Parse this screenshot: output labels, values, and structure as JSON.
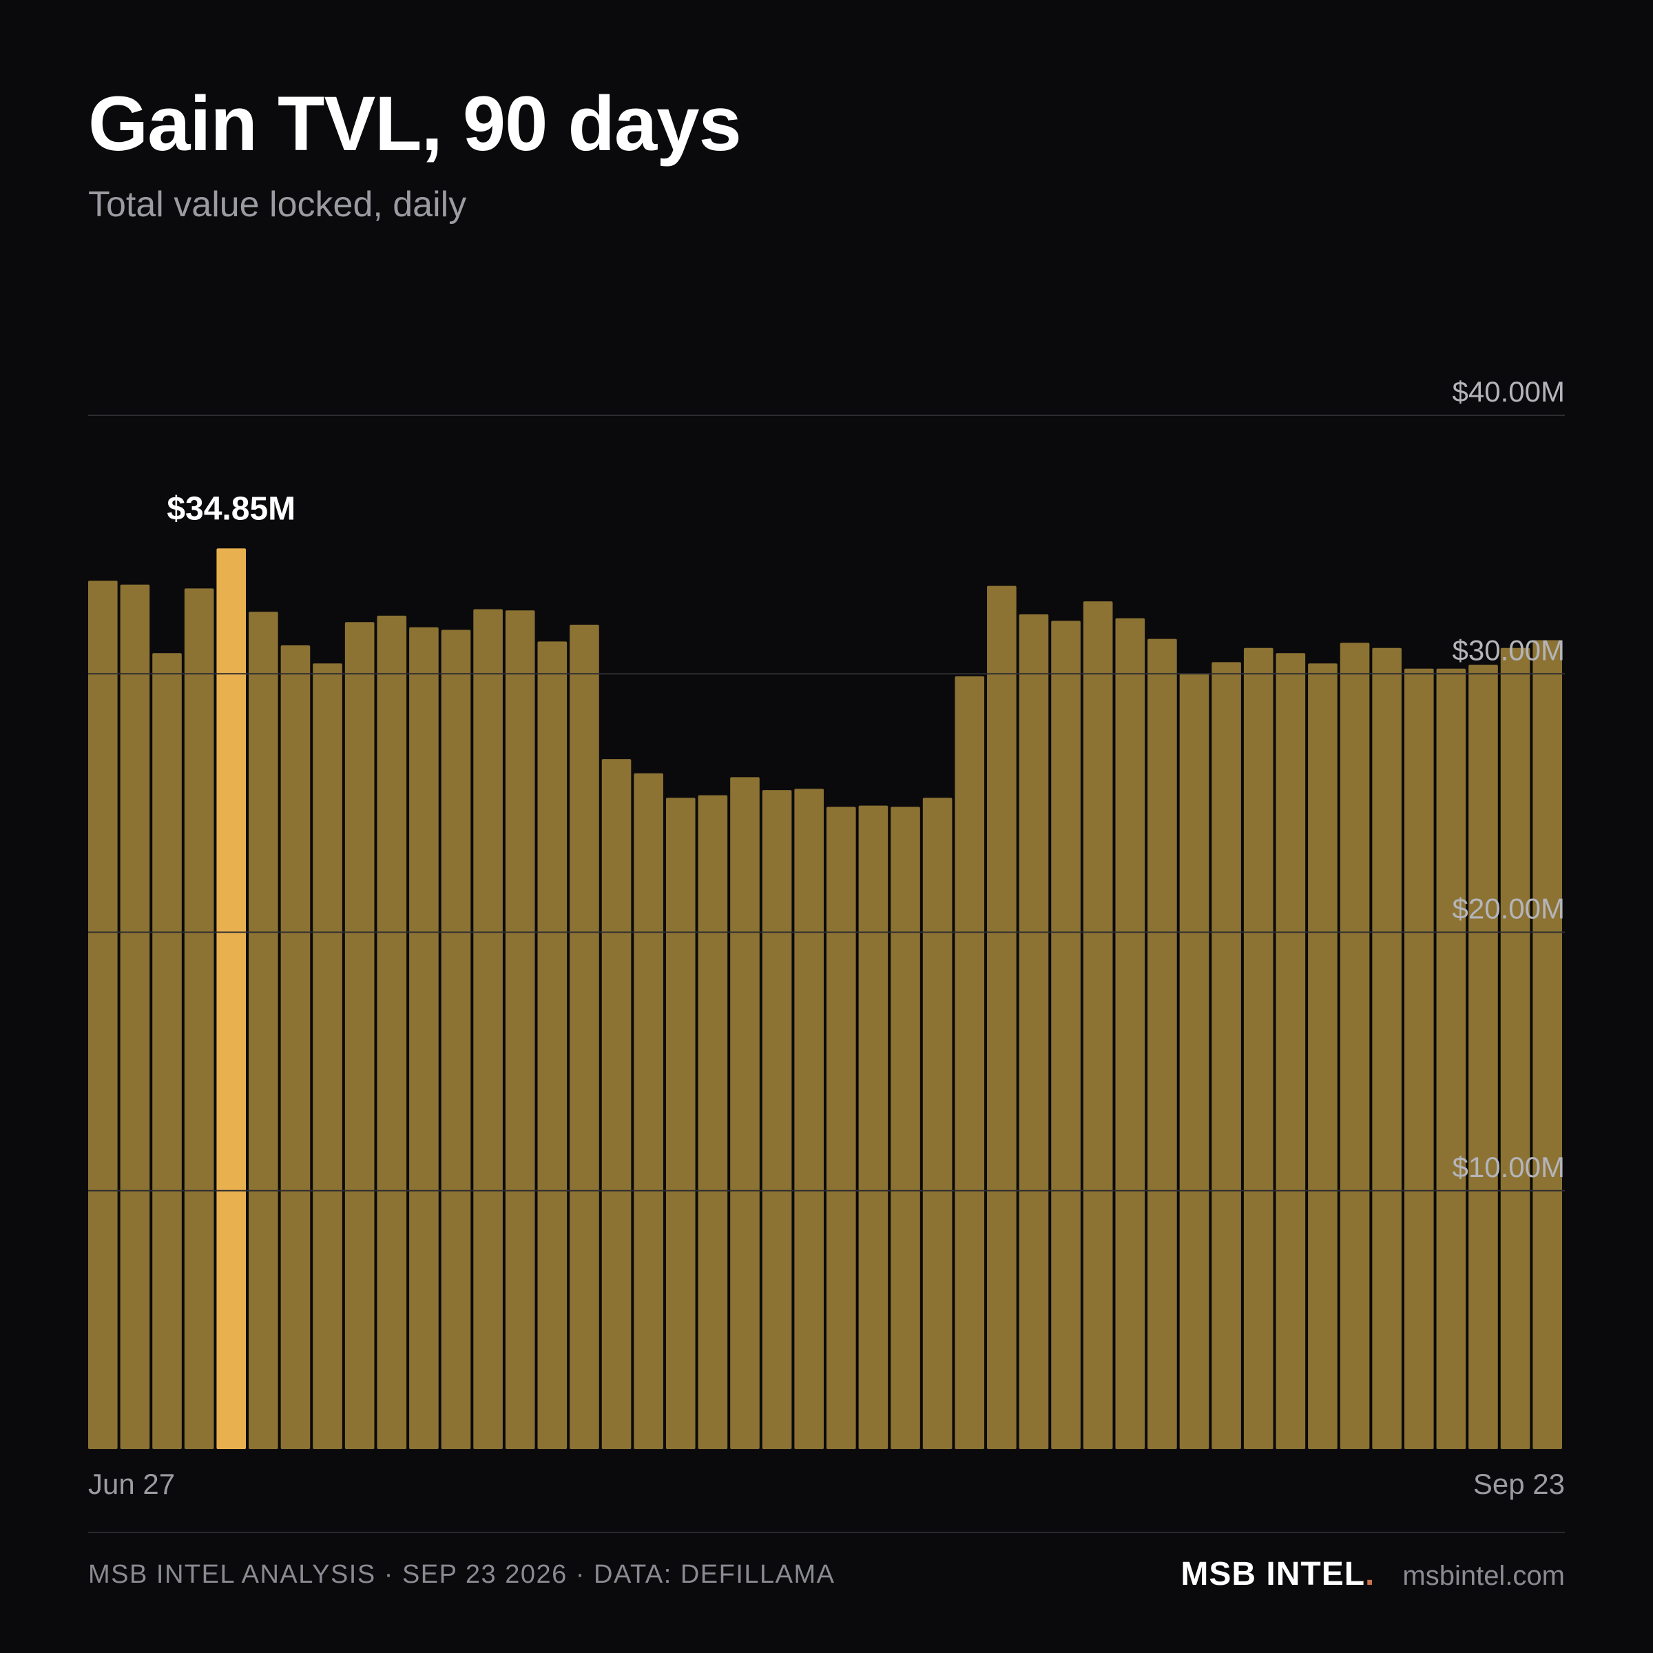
{
  "header": {
    "title": "Gain TVL, 90 days",
    "subtitle": "Total value locked, daily"
  },
  "footer": {
    "source": "MSB INTEL ANALYSIS · SEP 23 2026 · DATA: DEFILLAMA",
    "brand": "MSB INTEL",
    "brand_dot": ".",
    "site": "msbintel.com"
  },
  "colors": {
    "background": "#0a0a0c",
    "bar": "#8c7333",
    "bar_highlight": "#e8b04e",
    "brand_dot": "#c9724a"
  },
  "chart_data": {
    "type": "bar",
    "title": "Gain TVL, 90 days",
    "subtitle": "Total value locked, daily",
    "x_start_label": "Jun 27",
    "x_end_label": "Sep 23",
    "ylim": [
      0,
      40
    ],
    "y_ticks": [
      {
        "value": 10,
        "label": "$10.00M"
      },
      {
        "value": 20,
        "label": "$20.00M"
      },
      {
        "value": 30,
        "label": "$30.00M"
      },
      {
        "value": 40,
        "label": "$40.00M"
      }
    ],
    "highlight_index": 4,
    "highlight_label": "$34.85M",
    "grid": true,
    "values": [
      33.6,
      33.45,
      30.8,
      33.3,
      34.85,
      32.4,
      31.1,
      30.4,
      32.0,
      32.25,
      31.8,
      31.7,
      32.5,
      32.45,
      31.25,
      31.9,
      26.7,
      26.15,
      25.2,
      25.3,
      26.0,
      25.5,
      25.55,
      24.85,
      24.9,
      24.85,
      25.2,
      29.9,
      33.4,
      32.3,
      32.05,
      32.8,
      32.15,
      31.35,
      30.0,
      30.45,
      31.0,
      30.8,
      30.4,
      31.2,
      31.0,
      30.2,
      30.2,
      30.35,
      31.0,
      31.3
    ]
  }
}
